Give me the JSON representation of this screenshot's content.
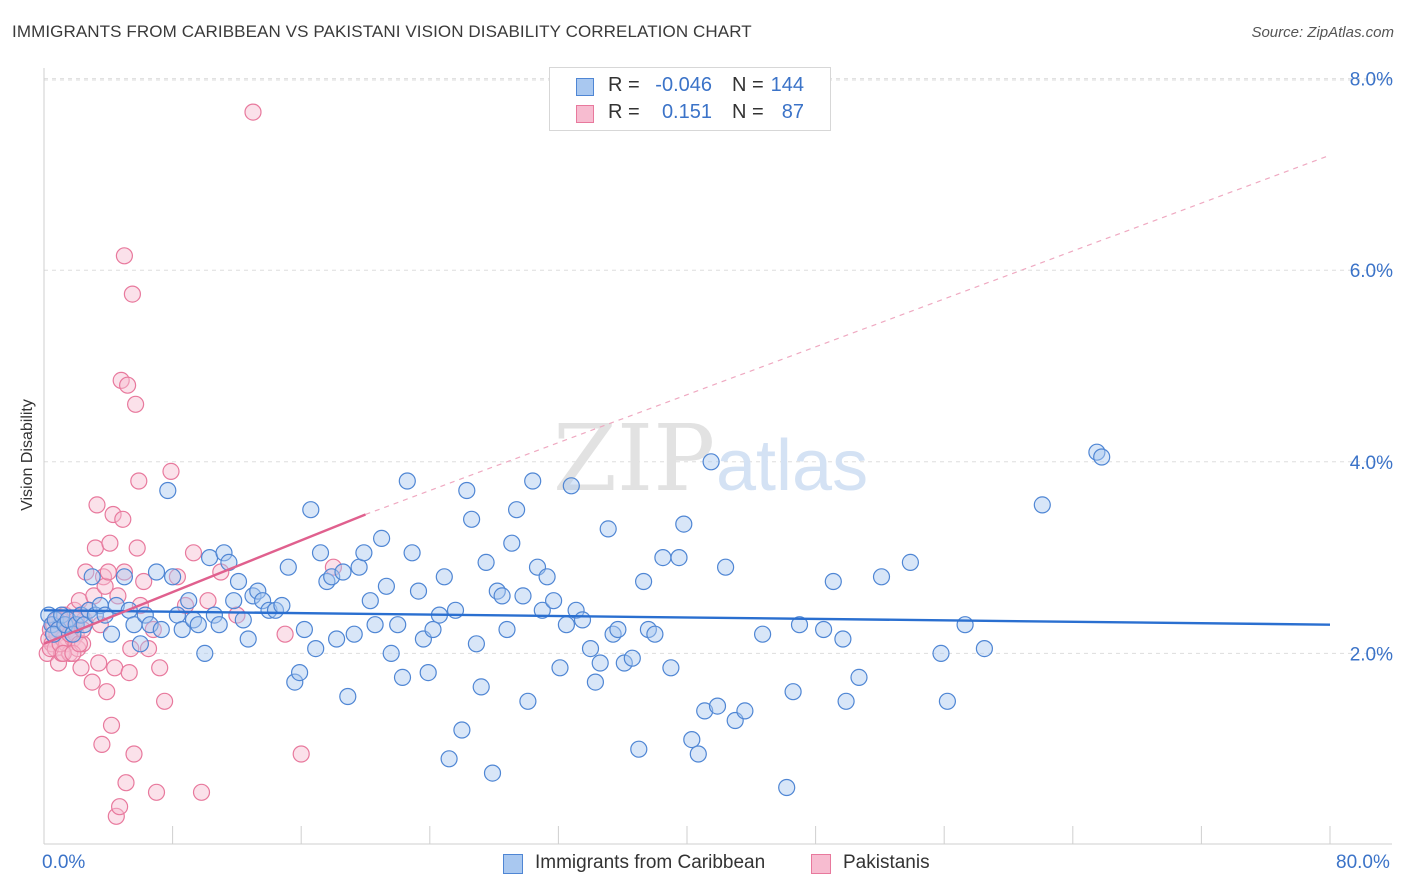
{
  "title": "IMMIGRANTS FROM CARIBBEAN VS PAKISTANI VISION DISABILITY CORRELATION CHART",
  "source": "Source: ZipAtlas.com",
  "watermark": {
    "zip": "ZIP",
    "atlas": "atlas"
  },
  "legend": {
    "rows": [
      {
        "r_label": "R =",
        "r_value": "-0.046",
        "n_label": "N =",
        "n_value": "144"
      },
      {
        "r_label": "R =",
        "r_value": "0.151",
        "n_label": "N =",
        "n_value": "87"
      }
    ]
  },
  "bottom_legend": [
    "Immigrants from Caribbean",
    "Pakistanis"
  ],
  "colors": {
    "blue_fill": "#a9c8f0",
    "blue_stroke": "#4f86d4",
    "blue_line": "#2a6fd0",
    "pink_fill": "#f7bcd0",
    "pink_stroke": "#e8799d",
    "pink_line": "#e0608e",
    "axis_label": "#3b73c8",
    "grid": "#dddddd"
  },
  "chart_data": {
    "type": "scatter",
    "title": "IMMIGRANTS FROM CARIBBEAN VS PAKISTANI VISION DISABILITY CORRELATION CHART",
    "xlabel": "",
    "ylabel": "Vision Disability",
    "xlim": [
      0,
      80
    ],
    "ylim": [
      0,
      8.3
    ],
    "x_tick_labels": [
      "0.0%",
      "80.0%"
    ],
    "y_ticks": [
      2,
      4,
      6,
      8
    ],
    "y_tick_labels": [
      "2.0%",
      "4.0%",
      "6.0%",
      "8.0%"
    ],
    "grid": true,
    "legend_position": "top-center",
    "series": [
      {
        "name": "Immigrants from Caribbean",
        "r": -0.046,
        "n": 144,
        "trend": {
          "x1": 0,
          "y1": 2.45,
          "x2": 80,
          "y2": 2.3,
          "dashed_to": null
        },
        "points": [
          [
            0.3,
            2.4
          ],
          [
            0.5,
            2.3
          ],
          [
            0.7,
            2.35
          ],
          [
            0.9,
            2.25
          ],
          [
            1.1,
            2.4
          ],
          [
            0.6,
            2.2
          ],
          [
            1.3,
            2.3
          ],
          [
            1.5,
            2.35
          ],
          [
            1.8,
            2.2
          ],
          [
            2.0,
            2.3
          ],
          [
            2.3,
            2.4
          ],
          [
            2.5,
            2.3
          ],
          [
            2.8,
            2.45
          ],
          [
            3.0,
            2.8
          ],
          [
            3.2,
            2.4
          ],
          [
            3.5,
            2.5
          ],
          [
            3.8,
            2.4
          ],
          [
            4.2,
            2.2
          ],
          [
            4.5,
            2.5
          ],
          [
            5.0,
            2.8
          ],
          [
            5.3,
            2.45
          ],
          [
            5.6,
            2.3
          ],
          [
            6.0,
            2.1
          ],
          [
            6.3,
            2.4
          ],
          [
            6.6,
            2.3
          ],
          [
            7.0,
            2.85
          ],
          [
            7.3,
            2.25
          ],
          [
            7.7,
            3.7
          ],
          [
            8.0,
            2.8
          ],
          [
            8.3,
            2.4
          ],
          [
            8.6,
            2.25
          ],
          [
            9.0,
            2.55
          ],
          [
            9.3,
            2.35
          ],
          [
            9.6,
            2.3
          ],
          [
            10.0,
            2.0
          ],
          [
            10.3,
            3.0
          ],
          [
            10.6,
            2.4
          ],
          [
            10.9,
            2.3
          ],
          [
            11.2,
            3.05
          ],
          [
            11.5,
            2.95
          ],
          [
            11.8,
            2.55
          ],
          [
            12.1,
            2.75
          ],
          [
            12.4,
            2.35
          ],
          [
            12.7,
            2.15
          ],
          [
            13.0,
            2.6
          ],
          [
            13.3,
            2.65
          ],
          [
            13.6,
            2.55
          ],
          [
            14.0,
            2.45
          ],
          [
            14.4,
            2.45
          ],
          [
            14.8,
            2.5
          ],
          [
            15.2,
            2.9
          ],
          [
            15.6,
            1.7
          ],
          [
            15.9,
            1.8
          ],
          [
            16.2,
            2.25
          ],
          [
            16.6,
            3.5
          ],
          [
            16.9,
            2.05
          ],
          [
            17.2,
            3.05
          ],
          [
            17.6,
            2.75
          ],
          [
            17.9,
            2.8
          ],
          [
            18.2,
            2.15
          ],
          [
            18.6,
            2.85
          ],
          [
            18.9,
            1.55
          ],
          [
            19.3,
            2.2
          ],
          [
            19.6,
            2.9
          ],
          [
            19.9,
            3.05
          ],
          [
            20.3,
            2.55
          ],
          [
            20.6,
            2.3
          ],
          [
            21.0,
            3.2
          ],
          [
            21.3,
            2.7
          ],
          [
            21.6,
            2.0
          ],
          [
            22.0,
            2.3
          ],
          [
            22.3,
            1.75
          ],
          [
            22.6,
            3.8
          ],
          [
            22.9,
            3.05
          ],
          [
            23.3,
            2.65
          ],
          [
            23.6,
            2.15
          ],
          [
            23.9,
            1.8
          ],
          [
            24.2,
            2.25
          ],
          [
            24.6,
            2.4
          ],
          [
            24.9,
            2.8
          ],
          [
            25.2,
            0.9
          ],
          [
            25.6,
            2.45
          ],
          [
            26.0,
            1.2
          ],
          [
            26.3,
            3.7
          ],
          [
            26.6,
            3.4
          ],
          [
            26.9,
            2.1
          ],
          [
            27.2,
            1.65
          ],
          [
            27.5,
            2.95
          ],
          [
            27.9,
            0.75
          ],
          [
            28.2,
            2.65
          ],
          [
            28.5,
            2.6
          ],
          [
            28.8,
            2.25
          ],
          [
            29.1,
            3.15
          ],
          [
            29.4,
            3.5
          ],
          [
            29.8,
            2.6
          ],
          [
            30.1,
            1.5
          ],
          [
            30.4,
            3.8
          ],
          [
            30.7,
            2.9
          ],
          [
            31.0,
            2.45
          ],
          [
            31.3,
            2.8
          ],
          [
            31.7,
            2.55
          ],
          [
            32.1,
            1.85
          ],
          [
            32.5,
            2.3
          ],
          [
            32.8,
            3.75
          ],
          [
            33.1,
            2.45
          ],
          [
            33.5,
            2.35
          ],
          [
            34.0,
            2.05
          ],
          [
            34.3,
            1.7
          ],
          [
            34.6,
            1.9
          ],
          [
            35.1,
            3.3
          ],
          [
            35.4,
            2.2
          ],
          [
            35.7,
            2.25
          ],
          [
            36.1,
            1.9
          ],
          [
            36.6,
            1.95
          ],
          [
            37.0,
            1.0
          ],
          [
            37.3,
            2.75
          ],
          [
            37.6,
            2.25
          ],
          [
            38.0,
            2.2
          ],
          [
            38.5,
            3.0
          ],
          [
            39.0,
            1.85
          ],
          [
            39.5,
            3.0
          ],
          [
            39.8,
            3.35
          ],
          [
            40.3,
            1.1
          ],
          [
            40.7,
            0.95
          ],
          [
            41.1,
            1.4
          ],
          [
            41.5,
            4.0
          ],
          [
            41.9,
            1.45
          ],
          [
            42.4,
            2.9
          ],
          [
            43.0,
            1.3
          ],
          [
            43.6,
            1.4
          ],
          [
            44.7,
            2.2
          ],
          [
            46.2,
            0.6
          ],
          [
            46.6,
            1.6
          ],
          [
            47.0,
            2.3
          ],
          [
            48.5,
            2.25
          ],
          [
            49.1,
            2.75
          ],
          [
            49.7,
            2.15
          ],
          [
            49.9,
            1.5
          ],
          [
            50.7,
            1.75
          ],
          [
            52.1,
            2.8
          ],
          [
            53.9,
            2.95
          ],
          [
            55.8,
            2.0
          ],
          [
            56.2,
            1.5
          ],
          [
            57.3,
            2.3
          ],
          [
            58.5,
            2.05
          ],
          [
            62.1,
            3.55
          ],
          [
            65.5,
            4.1
          ],
          [
            65.8,
            4.05
          ]
        ]
      },
      {
        "name": "Pakistanis",
        "r": 0.151,
        "n": 87,
        "trend": {
          "x1": 0,
          "y1": 2.1,
          "x2": 20,
          "y2": 3.45,
          "dashed_to": {
            "x": 80,
            "y": 7.2
          }
        },
        "points": [
          [
            0.2,
            2.0
          ],
          [
            0.3,
            2.15
          ],
          [
            0.4,
            2.25
          ],
          [
            0.5,
            2.1
          ],
          [
            0.6,
            2.3
          ],
          [
            0.7,
            2.05
          ],
          [
            0.8,
            2.2
          ],
          [
            0.9,
            1.9
          ],
          [
            1.0,
            2.35
          ],
          [
            1.1,
            2.0
          ],
          [
            1.2,
            2.15
          ],
          [
            1.3,
            2.4
          ],
          [
            1.4,
            2.1
          ],
          [
            1.5,
            2.25
          ],
          [
            1.6,
            2.0
          ],
          [
            1.7,
            2.3
          ],
          [
            1.8,
            2.15
          ],
          [
            1.9,
            2.45
          ],
          [
            2.0,
            2.2
          ],
          [
            2.1,
            2.05
          ],
          [
            2.2,
            2.55
          ],
          [
            2.3,
            1.85
          ],
          [
            2.4,
            2.1
          ],
          [
            2.5,
            2.35
          ],
          [
            0.4,
            2.05
          ],
          [
            0.6,
            2.2
          ],
          [
            0.8,
            2.35
          ],
          [
            1.0,
            2.1
          ],
          [
            1.2,
            2.0
          ],
          [
            1.4,
            2.3
          ],
          [
            1.6,
            2.2
          ],
          [
            1.8,
            2.0
          ],
          [
            2.0,
            2.35
          ],
          [
            2.2,
            2.1
          ],
          [
            2.4,
            2.25
          ],
          [
            2.6,
            2.85
          ],
          [
            2.8,
            2.45
          ],
          [
            3.0,
            1.7
          ],
          [
            3.1,
            2.6
          ],
          [
            3.2,
            3.1
          ],
          [
            3.3,
            3.55
          ],
          [
            3.4,
            1.9
          ],
          [
            3.5,
            2.3
          ],
          [
            3.6,
            1.05
          ],
          [
            3.7,
            2.8
          ],
          [
            3.8,
            2.7
          ],
          [
            3.9,
            1.6
          ],
          [
            4.0,
            2.85
          ],
          [
            4.1,
            3.15
          ],
          [
            4.2,
            1.25
          ],
          [
            4.3,
            3.45
          ],
          [
            4.4,
            1.85
          ],
          [
            4.5,
            0.3
          ],
          [
            4.6,
            2.6
          ],
          [
            4.7,
            0.4
          ],
          [
            4.8,
            4.85
          ],
          [
            4.9,
            3.4
          ],
          [
            5.0,
            2.85
          ],
          [
            5.1,
            0.65
          ],
          [
            5.2,
            4.8
          ],
          [
            5.3,
            1.8
          ],
          [
            5.4,
            2.05
          ],
          [
            5.5,
            5.75
          ],
          [
            5.6,
            0.95
          ],
          [
            5.7,
            4.6
          ],
          [
            5.8,
            3.1
          ],
          [
            5.9,
            3.8
          ],
          [
            6.0,
            2.5
          ],
          [
            6.2,
            2.75
          ],
          [
            6.5,
            2.05
          ],
          [
            6.8,
            2.25
          ],
          [
            7.0,
            0.55
          ],
          [
            7.2,
            1.85
          ],
          [
            7.5,
            1.5
          ],
          [
            7.9,
            3.9
          ],
          [
            8.3,
            2.8
          ],
          [
            8.8,
            2.5
          ],
          [
            9.3,
            3.05
          ],
          [
            9.8,
            0.55
          ],
          [
            10.2,
            2.55
          ],
          [
            11.0,
            2.85
          ],
          [
            12.0,
            2.4
          ],
          [
            13.0,
            7.65
          ],
          [
            15.0,
            2.2
          ],
          [
            16.0,
            0.95
          ],
          [
            18.0,
            2.9
          ],
          [
            5.0,
            6.15
          ]
        ]
      }
    ]
  }
}
